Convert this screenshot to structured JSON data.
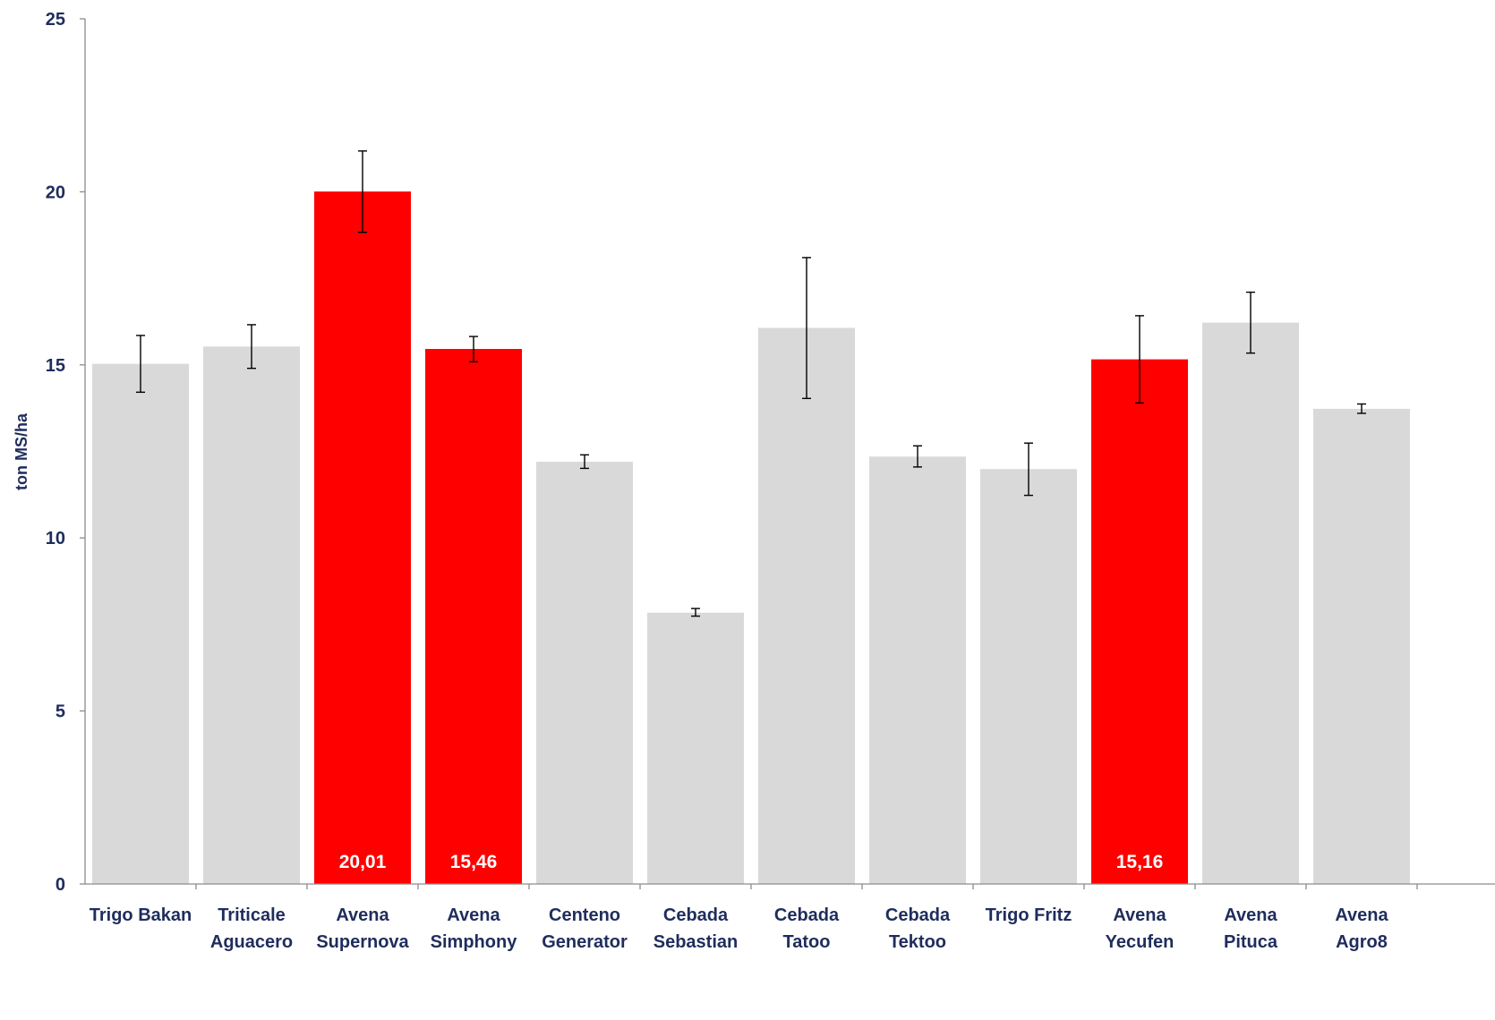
{
  "chart_data": {
    "type": "bar",
    "ylabel": "ton MS/ha",
    "ylim": [
      0,
      25
    ],
    "yticks": [
      "0",
      "5",
      "10",
      "15",
      "20",
      "25"
    ],
    "grid": false,
    "legend": "none",
    "categories": [
      [
        "Trigo Bakan"
      ],
      [
        "Triticale",
        "Aguacero"
      ],
      [
        "Avena",
        "Supernova"
      ],
      [
        "Avena",
        "Simphony"
      ],
      [
        "Centeno",
        "Generator"
      ],
      [
        "Cebada",
        "Sebastian"
      ],
      [
        "Cebada",
        "Tatoo"
      ],
      [
        "Cebada",
        "Tektoo"
      ],
      [
        "Trigo Fritz"
      ],
      [
        "Avena",
        "Yecufen"
      ],
      [
        "Avena",
        "Pituca"
      ],
      [
        "Avena",
        "Agro8"
      ]
    ],
    "values": [
      15.03,
      15.53,
      20.01,
      15.46,
      12.2,
      7.84,
      16.07,
      12.35,
      11.99,
      15.16,
      16.22,
      13.73
    ],
    "error_low": [
      14.21,
      14.9,
      18.83,
      15.09,
      12.01,
      7.74,
      14.03,
      12.05,
      11.23,
      13.9,
      15.34,
      13.6
    ],
    "error_high": [
      15.85,
      16.16,
      21.18,
      15.82,
      12.4,
      7.96,
      18.1,
      12.66,
      12.74,
      16.42,
      17.1,
      13.87
    ],
    "highlight": [
      false,
      false,
      true,
      true,
      false,
      false,
      false,
      false,
      false,
      true,
      false,
      false
    ],
    "data_labels": [
      "",
      "",
      "20,01",
      "15,46",
      "",
      "",
      "",
      "",
      "",
      "15,16",
      "",
      ""
    ],
    "colors": {
      "highlight": "#ff0000",
      "default": "#d9d9d9",
      "axis": "#8c8c8c",
      "text": "#1f2d5c",
      "error_bar": "#000000"
    }
  }
}
